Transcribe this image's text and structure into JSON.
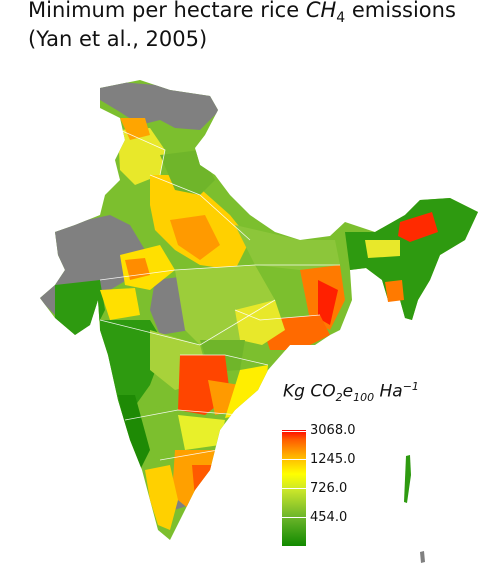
{
  "title": {
    "line1_prefix": "Minimum per hectare rice ",
    "line1_gas": "CH",
    "line1_gas_sub": "4",
    "line1_suffix": " emissions",
    "line2": "(Yan et al., 2005)"
  },
  "legend": {
    "title_kg": "Kg ",
    "title_co": "CO",
    "title_co_sub": "2",
    "title_e": "e",
    "title_e_sub": "100",
    "title_ha": " Ha",
    "title_ha_sup": "−1",
    "ticks": [
      "3068.0",
      "1245.0",
      "726.0",
      "454.0"
    ]
  },
  "colors": {
    "no_data": "#808080",
    "low": "#118a00",
    "mid": "#ffff00",
    "high": "#ff0000"
  }
}
